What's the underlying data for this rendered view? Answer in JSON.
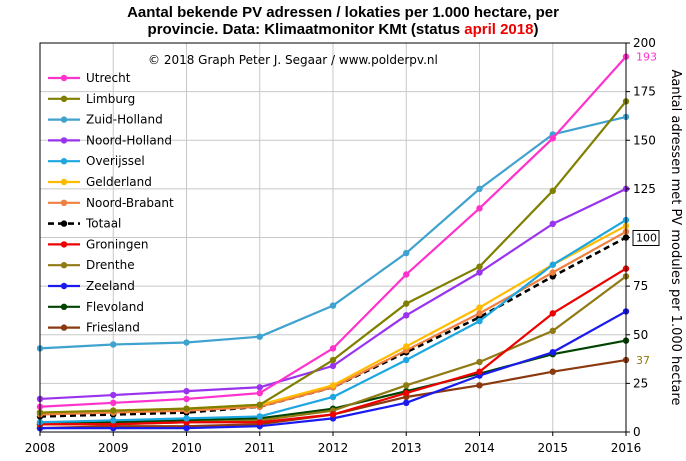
{
  "chart_data": {
    "type": "line",
    "title_prefix": "Aantal bekende PV adressen / lokaties per 1.000 hectare, per",
    "title_line2_prefix": "provincie.  Data: Klimaatmonitor KMt (status ",
    "title_highlight": "april 2018",
    "title_suffix": ")",
    "copyright": "© 2018  Graph  Peter J. Segaar / www.polderpv.nl",
    "ylabel": "Aantal adressen met PV modules  per 1.000  hectare",
    "ylim": [
      0,
      200
    ],
    "yticks": [
      "0",
      "25",
      "50",
      "75",
      "100",
      "125",
      "150",
      "175",
      "200"
    ],
    "x": [
      "2008",
      "2009",
      "2010",
      "2011",
      "2012",
      "2013",
      "2014",
      "2015",
      "2016"
    ],
    "series": [
      {
        "name": "Utrecht",
        "color": "#ff33cc",
        "dashed": false,
        "values": [
          13,
          15,
          17,
          20,
          43,
          81,
          115,
          151,
          193
        ]
      },
      {
        "name": "Limburg",
        "color": "#808000",
        "dashed": false,
        "values": [
          10,
          11,
          12,
          14,
          37,
          66,
          85,
          124,
          170
        ]
      },
      {
        "name": "Zuid-Holland",
        "color": "#3fa2cf",
        "dashed": false,
        "values": [
          43,
          45,
          46,
          49,
          65,
          92,
          125,
          153,
          162
        ]
      },
      {
        "name": "Noord-Holland",
        "color": "#9933ee",
        "dashed": false,
        "values": [
          17,
          19,
          21,
          23,
          34,
          60,
          82,
          107,
          125
        ]
      },
      {
        "name": "Overijssel",
        "color": "#1ea6e0",
        "dashed": false,
        "values": [
          5,
          6,
          7,
          8,
          18,
          37,
          57,
          86,
          109
        ]
      },
      {
        "name": "Gelderland",
        "color": "#ffbb00",
        "dashed": false,
        "values": [
          10,
          11,
          12,
          14,
          24,
          44,
          64,
          86,
          106
        ]
      },
      {
        "name": "Noord-Brabant",
        "color": "#f08040",
        "dashed": false,
        "values": [
          9,
          10,
          11,
          13,
          23,
          42,
          61,
          82,
          103
        ]
      },
      {
        "name": "Totaal",
        "color": "#000000",
        "dashed": true,
        "values": [
          8,
          9,
          10,
          13,
          23,
          41,
          59,
          80,
          100
        ]
      },
      {
        "name": "Groningen",
        "color": "#ee0000",
        "dashed": false,
        "values": [
          4,
          4,
          5,
          5,
          9,
          20,
          31,
          61,
          84
        ]
      },
      {
        "name": "Drenthe",
        "color": "#8f7a14",
        "dashed": false,
        "values": [
          4,
          4,
          5,
          6,
          11,
          24,
          36,
          52,
          80
        ]
      },
      {
        "name": "Zeeland",
        "color": "#1a1aee",
        "dashed": false,
        "values": [
          2,
          2,
          2,
          3,
          7,
          15,
          29,
          41,
          62
        ]
      },
      {
        "name": "Flevoland",
        "color": "#004400",
        "dashed": false,
        "values": [
          4,
          5,
          6,
          7,
          12,
          21,
          30,
          40,
          47
        ]
      },
      {
        "name": "Friesland",
        "color": "#8b3a0f",
        "dashed": false,
        "values": [
          2,
          3,
          3,
          4,
          9,
          18,
          24,
          31,
          37
        ]
      }
    ],
    "end_labels": [
      {
        "series": "Utrecht",
        "text": "193",
        "color": "#ff33cc",
        "boxed": false
      },
      {
        "series": "Totaal",
        "text": "100",
        "color": "#000000",
        "boxed": true
      },
      {
        "series": "Friesland",
        "text": "37",
        "color": "#8f7a14",
        "boxed": false
      }
    ],
    "grid": true,
    "legend_position": "top-left"
  }
}
